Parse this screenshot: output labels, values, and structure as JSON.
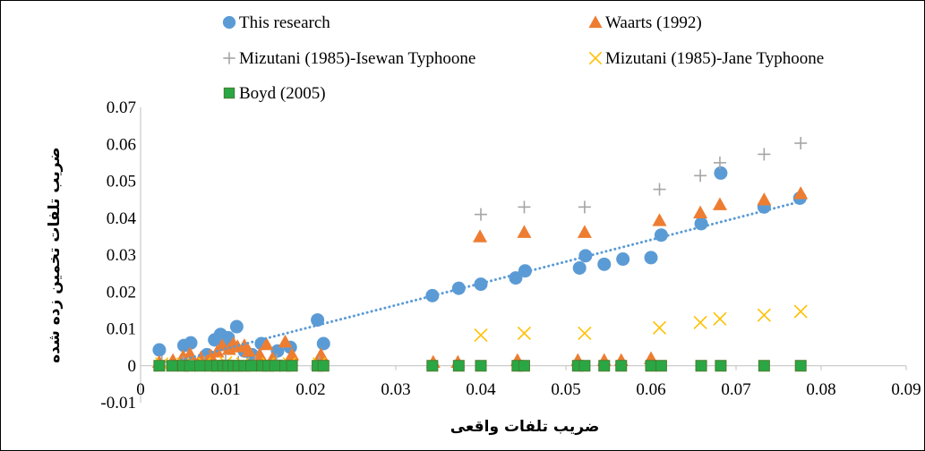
{
  "chart_data": {
    "type": "scatter",
    "xlabel": "ضریب تلفات واقعی",
    "ylabel": "ضریب تلفات تخمین زده شده",
    "xlim": [
      0,
      0.09
    ],
    "ylim": [
      -0.01,
      0.07
    ],
    "x_ticks": [
      "0",
      "0.01",
      "0.02",
      "0.03",
      "0.04",
      "0.05",
      "0.06",
      "0.07",
      "0.08",
      "0.09"
    ],
    "y_ticks": [
      "-0.01",
      "0",
      "0.01",
      "0.02",
      "0.03",
      "0.04",
      "0.05",
      "0.06",
      "0.07"
    ],
    "grid": false,
    "legend_position": "top",
    "series": [
      {
        "name": "This research",
        "marker": "circle",
        "color": "#5b9bd5",
        "points": [
          [
            0.0022,
            0.0043
          ],
          [
            0.0051,
            0.0055
          ],
          [
            0.0059,
            0.0062
          ],
          [
            0.0087,
            0.007
          ],
          [
            0.0094,
            0.0085
          ],
          [
            0.0103,
            0.0076
          ],
          [
            0.0107,
            0.0052
          ],
          [
            0.0113,
            0.0106
          ],
          [
            0.0122,
            0.004
          ],
          [
            0.0142,
            0.006
          ],
          [
            0.0161,
            0.004
          ],
          [
            0.0176,
            0.005
          ],
          [
            0.0208,
            0.0124
          ],
          [
            0.0215,
            0.006
          ],
          [
            0.0078,
            0.003
          ],
          [
            0.0131,
            0.003
          ],
          [
            0.0343,
            0.019
          ],
          [
            0.0374,
            0.021
          ],
          [
            0.04,
            0.0221
          ],
          [
            0.0441,
            0.0238
          ],
          [
            0.0452,
            0.0257
          ],
          [
            0.0516,
            0.0265
          ],
          [
            0.0523,
            0.0298
          ],
          [
            0.0545,
            0.0275
          ],
          [
            0.0567,
            0.0289
          ],
          [
            0.06,
            0.0293
          ],
          [
            0.0612,
            0.0354
          ],
          [
            0.0659,
            0.0385
          ],
          [
            0.0682,
            0.0522
          ],
          [
            0.0733,
            0.043
          ],
          [
            0.0775,
            0.0454
          ]
        ]
      },
      {
        "name": "Waarts (1992)",
        "marker": "triangle",
        "color": "#ed7d31",
        "points": [
          [
            0.0022,
            0.001
          ],
          [
            0.0038,
            0.0015
          ],
          [
            0.005,
            0.0025
          ],
          [
            0.0058,
            0.0032
          ],
          [
            0.0071,
            0.0022
          ],
          [
            0.0082,
            0.0028
          ],
          [
            0.009,
            0.0038
          ],
          [
            0.0096,
            0.0055
          ],
          [
            0.0104,
            0.0045
          ],
          [
            0.0109,
            0.006
          ],
          [
            0.0114,
            0.0052
          ],
          [
            0.0122,
            0.0055
          ],
          [
            0.0127,
            0.004
          ],
          [
            0.014,
            0.003
          ],
          [
            0.0148,
            0.0058
          ],
          [
            0.0155,
            0.002
          ],
          [
            0.017,
            0.0065
          ],
          [
            0.0178,
            0.003
          ],
          [
            0.0212,
            0.003
          ],
          [
            0.0344,
            0.001
          ],
          [
            0.0373,
            0.001
          ],
          [
            0.0399,
            0.035
          ],
          [
            0.0443,
            0.0015
          ],
          [
            0.0451,
            0.0362
          ],
          [
            0.0514,
            0.0015
          ],
          [
            0.0522,
            0.0362
          ],
          [
            0.0545,
            0.0015
          ],
          [
            0.0565,
            0.0015
          ],
          [
            0.06,
            0.002
          ],
          [
            0.061,
            0.0394
          ],
          [
            0.0658,
            0.0415
          ],
          [
            0.0681,
            0.0437
          ],
          [
            0.0733,
            0.045
          ],
          [
            0.0776,
            0.0467
          ]
        ]
      },
      {
        "name": "Mizutani (1985)-Isewan Typhoone",
        "marker": "plus",
        "color": "#a5a5a5",
        "points": [
          [
            0.0025,
            0.001
          ],
          [
            0.005,
            0.001
          ],
          [
            0.0075,
            0.001
          ],
          [
            0.01,
            0.0015
          ],
          [
            0.0115,
            0.001
          ],
          [
            0.0135,
            0.001
          ],
          [
            0.016,
            0.0015
          ],
          [
            0.021,
            0.001
          ],
          [
            0.04,
            0.041
          ],
          [
            0.0451,
            0.043
          ],
          [
            0.0522,
            0.043
          ],
          [
            0.061,
            0.0478
          ],
          [
            0.0658,
            0.0515
          ],
          [
            0.0681,
            0.055
          ],
          [
            0.0733,
            0.0573
          ],
          [
            0.0776,
            0.0603
          ]
        ]
      },
      {
        "name": "Mizutani (1985)-Jane Typhoone",
        "marker": "x",
        "color": "#ffc000",
        "points": [
          [
            0.0025,
            0.0005
          ],
          [
            0.005,
            0.0005
          ],
          [
            0.0075,
            0.0005
          ],
          [
            0.01,
            0.0008
          ],
          [
            0.012,
            0.0005
          ],
          [
            0.015,
            0.0005
          ],
          [
            0.0175,
            0.0005
          ],
          [
            0.021,
            0.0005
          ],
          [
            0.04,
            0.0083
          ],
          [
            0.0451,
            0.0088
          ],
          [
            0.0522,
            0.0088
          ],
          [
            0.061,
            0.0103
          ],
          [
            0.0658,
            0.0117
          ],
          [
            0.0681,
            0.0127
          ],
          [
            0.0733,
            0.0137
          ],
          [
            0.0776,
            0.0147
          ]
        ]
      },
      {
        "name": "Boyd (2005)",
        "marker": "square",
        "color": "#2aa745",
        "points": [
          [
            0.0022,
            0
          ],
          [
            0.0037,
            0
          ],
          [
            0.005,
            0
          ],
          [
            0.0058,
            0
          ],
          [
            0.007,
            0
          ],
          [
            0.0082,
            0
          ],
          [
            0.009,
            0
          ],
          [
            0.0097,
            0
          ],
          [
            0.0103,
            0
          ],
          [
            0.0109,
            0
          ],
          [
            0.0115,
            0
          ],
          [
            0.0122,
            0
          ],
          [
            0.013,
            0
          ],
          [
            0.0143,
            0
          ],
          [
            0.015,
            0
          ],
          [
            0.0158,
            0
          ],
          [
            0.017,
            0
          ],
          [
            0.0178,
            0
          ],
          [
            0.0208,
            0
          ],
          [
            0.0215,
            0
          ],
          [
            0.0343,
            0
          ],
          [
            0.0374,
            0
          ],
          [
            0.04,
            0
          ],
          [
            0.0443,
            0
          ],
          [
            0.0451,
            0
          ],
          [
            0.0514,
            0
          ],
          [
            0.0522,
            0
          ],
          [
            0.0545,
            0
          ],
          [
            0.0565,
            0
          ],
          [
            0.06,
            0
          ],
          [
            0.0612,
            0
          ],
          [
            0.0659,
            0
          ],
          [
            0.0682,
            0
          ],
          [
            0.0733,
            0
          ],
          [
            0.0776,
            0
          ]
        ]
      }
    ],
    "trendline": {
      "series": "This research",
      "style": "dotted",
      "color": "#5b9bd5",
      "x": [
        0.0022,
        0.0776
      ],
      "y": [
        0.0,
        0.0445
      ]
    }
  }
}
